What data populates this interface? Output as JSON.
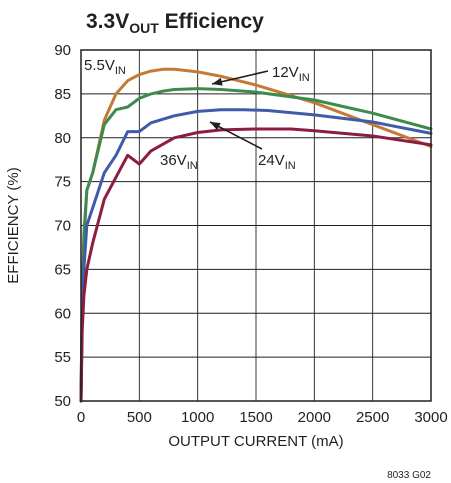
{
  "chart_data": {
    "type": "line",
    "title_main": "3.3V",
    "title_sub": "OUT",
    "title_rest": " Efficiency",
    "xlabel": "OUTPUT CURRENT (mA)",
    "ylabel": "EFFICIENCY (%)",
    "xlim": [
      0,
      3000
    ],
    "ylim": [
      50,
      90
    ],
    "x_ticks": [
      0,
      500,
      1000,
      1500,
      2000,
      2500,
      3000
    ],
    "y_ticks": [
      50,
      55,
      60,
      65,
      70,
      75,
      80,
      85,
      90
    ],
    "x_tick_labels": [
      "0",
      "500",
      "1000",
      "1500",
      "2000",
      "2500",
      "3000"
    ],
    "y_tick_labels": [
      "50",
      "55",
      "60",
      "65",
      "70",
      "75",
      "80",
      "85",
      "90"
    ],
    "grid": true,
    "figure_id": "8033 G02",
    "series": [
      {
        "name": "5.5V",
        "name_sub": "IN",
        "color": "#c47a34",
        "points": [
          [
            0,
            50
          ],
          [
            10,
            62
          ],
          [
            25,
            68
          ],
          [
            50,
            74
          ],
          [
            100,
            76
          ],
          [
            200,
            82
          ],
          [
            300,
            85
          ],
          [
            400,
            86.5
          ],
          [
            500,
            87.2
          ],
          [
            600,
            87.6
          ],
          [
            700,
            87.8
          ],
          [
            800,
            87.8
          ],
          [
            1000,
            87.5
          ],
          [
            1200,
            87
          ],
          [
            1500,
            86
          ],
          [
            2000,
            84
          ],
          [
            2500,
            81.5
          ],
          [
            3000,
            79
          ]
        ]
      },
      {
        "name": "12V",
        "name_sub": "IN",
        "color": "#3c8a4e",
        "points": [
          [
            0,
            50
          ],
          [
            10,
            62
          ],
          [
            25,
            69
          ],
          [
            50,
            74
          ],
          [
            100,
            76
          ],
          [
            200,
            81.5
          ],
          [
            300,
            83.2
          ],
          [
            400,
            83.5
          ],
          [
            500,
            84.5
          ],
          [
            600,
            85
          ],
          [
            700,
            85.3
          ],
          [
            800,
            85.5
          ],
          [
            1000,
            85.6
          ],
          [
            1200,
            85.5
          ],
          [
            1500,
            85.2
          ],
          [
            2000,
            84.3
          ],
          [
            2500,
            82.8
          ],
          [
            3000,
            81
          ]
        ]
      },
      {
        "name": "24V",
        "name_sub": "IN",
        "color": "#3f5ba9",
        "points": [
          [
            0,
            50
          ],
          [
            10,
            60
          ],
          [
            25,
            65
          ],
          [
            50,
            70
          ],
          [
            100,
            72
          ],
          [
            200,
            76
          ],
          [
            300,
            78
          ],
          [
            400,
            80.7
          ],
          [
            500,
            80.7
          ],
          [
            600,
            81.7
          ],
          [
            800,
            82.5
          ],
          [
            1000,
            83
          ],
          [
            1200,
            83.2
          ],
          [
            1400,
            83.2
          ],
          [
            1600,
            83.1
          ],
          [
            2000,
            82.6
          ],
          [
            2500,
            81.8
          ],
          [
            3000,
            80.5
          ]
        ]
      },
      {
        "name": "36V",
        "name_sub": "IN",
        "color": "#8c1d40",
        "points": [
          [
            0,
            50
          ],
          [
            10,
            58
          ],
          [
            25,
            62
          ],
          [
            50,
            65
          ],
          [
            100,
            68
          ],
          [
            200,
            73
          ],
          [
            300,
            75.5
          ],
          [
            400,
            78
          ],
          [
            500,
            77
          ],
          [
            600,
            78.5
          ],
          [
            800,
            80
          ],
          [
            1000,
            80.6
          ],
          [
            1200,
            80.9
          ],
          [
            1500,
            81
          ],
          [
            1800,
            81
          ],
          [
            2000,
            80.8
          ],
          [
            2500,
            80.2
          ],
          [
            3000,
            79.2
          ]
        ]
      }
    ],
    "annotations": [
      {
        "text": "5.5V",
        "sub": "IN"
      },
      {
        "text": "12V",
        "sub": "IN"
      },
      {
        "text": "24V",
        "sub": "IN"
      },
      {
        "text": "36V",
        "sub": "IN"
      }
    ]
  }
}
